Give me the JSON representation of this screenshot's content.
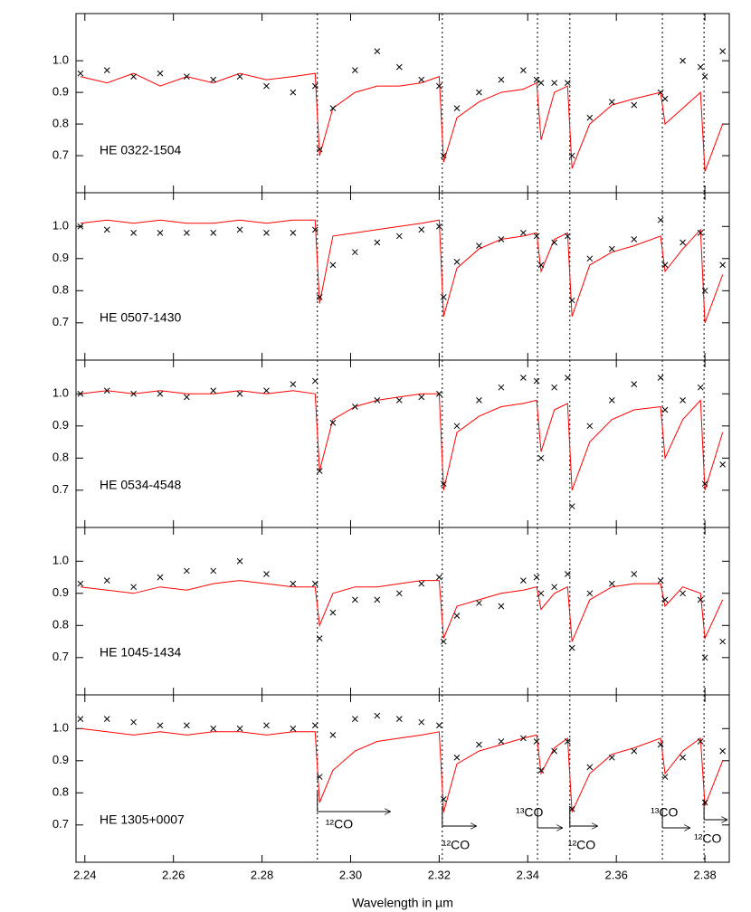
{
  "chart_data": [
    {
      "type": "spectrum",
      "label": "HE 0322-1504",
      "x": [
        2.239,
        2.245,
        2.251,
        2.257,
        2.263,
        2.269,
        2.275,
        2.281,
        2.287,
        2.292,
        2.293,
        2.296,
        2.301,
        2.306,
        2.311,
        2.316,
        2.32,
        2.321,
        2.324,
        2.329,
        2.334,
        2.339,
        2.342,
        2.343,
        2.346,
        2.349,
        2.35,
        2.354,
        2.359,
        2.364,
        2.37,
        2.371,
        2.375,
        2.379,
        2.38,
        2.384
      ],
      "series": [
        {
          "style": "line",
          "color": "#ff0000",
          "values": [
            0.95,
            0.93,
            0.96,
            0.92,
            0.95,
            0.93,
            0.96,
            0.94,
            0.95,
            0.96,
            0.7,
            0.85,
            0.9,
            0.92,
            0.92,
            0.93,
            0.95,
            0.68,
            0.82,
            0.87,
            0.9,
            0.91,
            0.93,
            0.75,
            0.9,
            0.92,
            0.66,
            0.8,
            0.86,
            0.88,
            0.9,
            0.8,
            0.85,
            0.9,
            0.65,
            0.8
          ]
        },
        {
          "style": "cross",
          "color": "#000000",
          "values": [
            0.96,
            0.97,
            0.95,
            0.96,
            0.95,
            0.94,
            0.95,
            0.92,
            0.9,
            0.92,
            0.72,
            0.85,
            0.97,
            1.03,
            0.98,
            0.94,
            0.92,
            0.7,
            0.85,
            0.9,
            0.94,
            0.97,
            0.94,
            0.93,
            0.93,
            0.93,
            0.7,
            0.82,
            0.87,
            0.86,
            0.9,
            0.88,
            1.0,
            0.98,
            0.95,
            1.03
          ]
        }
      ],
      "xlim": [
        2.238,
        2.3855
      ],
      "ylim": [
        0.583,
        1.149
      ],
      "xticks": [
        2.24,
        2.26,
        2.28,
        {
          "value": 2.3,
          "label": "2.30"
        },
        2.32,
        2.34,
        2.36,
        2.38
      ],
      "yticks": [
        0.7,
        0.8,
        0.9,
        {
          "value": 1,
          "label": "1.0"
        }
      ],
      "vlines": [
        2.2925,
        2.3207,
        2.3422,
        2.3495,
        2.3704,
        2.3798
      ]
    },
    {
      "type": "spectrum",
      "label": "HE 0507-1430",
      "x": [
        2.239,
        2.245,
        2.251,
        2.257,
        2.263,
        2.269,
        2.275,
        2.281,
        2.287,
        2.292,
        2.293,
        2.296,
        2.301,
        2.306,
        2.311,
        2.316,
        2.32,
        2.321,
        2.324,
        2.329,
        2.334,
        2.339,
        2.342,
        2.343,
        2.346,
        2.349,
        2.35,
        2.354,
        2.359,
        2.364,
        2.37,
        2.371,
        2.375,
        2.379,
        2.38,
        2.384
      ],
      "series": [
        {
          "style": "line",
          "color": "#ff0000",
          "values": [
            1.01,
            1.02,
            1.01,
            1.02,
            1.01,
            1.01,
            1.02,
            1.01,
            1.02,
            1.02,
            0.76,
            0.97,
            0.98,
            0.99,
            1.0,
            1.01,
            1.02,
            0.72,
            0.87,
            0.93,
            0.96,
            0.97,
            0.98,
            0.86,
            0.96,
            0.98,
            0.72,
            0.88,
            0.92,
            0.94,
            0.97,
            0.86,
            0.93,
            0.99,
            0.7,
            0.85
          ]
        },
        {
          "style": "cross",
          "color": "#000000",
          "values": [
            1.0,
            0.99,
            0.98,
            0.98,
            0.98,
            0.98,
            0.99,
            0.98,
            0.98,
            0.99,
            0.78,
            0.88,
            0.92,
            0.95,
            0.97,
            0.99,
            1.0,
            0.78,
            0.89,
            0.94,
            0.96,
            0.98,
            0.97,
            0.88,
            0.95,
            0.97,
            0.77,
            0.9,
            0.93,
            0.96,
            1.02,
            0.88,
            0.95,
            0.98,
            0.8,
            0.88
          ]
        }
      ],
      "xlim": [
        2.238,
        2.3855
      ],
      "ylim": [
        0.584,
        1.105
      ],
      "xticks": [
        2.24,
        2.26,
        2.28,
        {
          "value": 2.3,
          "label": "2.30"
        },
        2.32,
        2.34,
        2.36,
        2.38
      ],
      "yticks": [
        0.7,
        0.8,
        0.9,
        {
          "value": 1,
          "label": "1.0"
        }
      ],
      "vlines": [
        2.2925,
        2.3207,
        2.3422,
        2.3495,
        2.3704,
        2.3798
      ]
    },
    {
      "type": "spectrum",
      "label": "HE 0534-4548",
      "x": [
        2.239,
        2.245,
        2.251,
        2.257,
        2.263,
        2.269,
        2.275,
        2.281,
        2.287,
        2.292,
        2.293,
        2.296,
        2.301,
        2.306,
        2.311,
        2.316,
        2.32,
        2.321,
        2.324,
        2.329,
        2.334,
        2.339,
        2.342,
        2.343,
        2.346,
        2.349,
        2.35,
        2.354,
        2.359,
        2.364,
        2.37,
        2.371,
        2.375,
        2.379,
        2.38,
        2.384
      ],
      "series": [
        {
          "style": "line",
          "color": "#ff0000",
          "values": [
            1.0,
            1.01,
            1.0,
            1.01,
            1.0,
            1.0,
            1.01,
            1.0,
            1.01,
            1.0,
            0.76,
            0.92,
            0.96,
            0.98,
            0.99,
            1.0,
            1.0,
            0.7,
            0.88,
            0.93,
            0.96,
            0.97,
            0.98,
            0.82,
            0.95,
            0.97,
            0.7,
            0.85,
            0.92,
            0.95,
            0.96,
            0.8,
            0.92,
            0.98,
            0.7,
            0.88
          ]
        },
        {
          "style": "cross",
          "color": "#000000",
          "values": [
            1.0,
            1.01,
            1.0,
            1.0,
            0.99,
            1.01,
            1.0,
            1.01,
            1.03,
            1.04,
            0.76,
            0.91,
            0.96,
            0.98,
            0.98,
            0.99,
            1.0,
            0.72,
            0.9,
            0.98,
            1.02,
            1.05,
            1.04,
            0.8,
            1.02,
            1.05,
            0.65,
            0.9,
            0.98,
            1.03,
            1.05,
            0.95,
            0.98,
            1.02,
            0.72,
            0.78
          ]
        }
      ],
      "xlim": [
        2.238,
        2.3855
      ],
      "ylim": [
        0.584,
        1.105
      ],
      "xticks": [
        2.24,
        2.26,
        2.28,
        {
          "value": 2.3,
          "label": "2.30"
        },
        2.32,
        2.34,
        2.36,
        2.38
      ],
      "yticks": [
        0.7,
        0.8,
        0.9,
        {
          "value": 1,
          "label": "1.0"
        }
      ],
      "vlines": [
        2.2925,
        2.3207,
        2.3422,
        2.3495,
        2.3704,
        2.3798
      ]
    },
    {
      "type": "spectrum",
      "label": "HE 1045-1434",
      "x": [
        2.239,
        2.245,
        2.251,
        2.257,
        2.263,
        2.269,
        2.275,
        2.281,
        2.287,
        2.292,
        2.293,
        2.296,
        2.301,
        2.306,
        2.311,
        2.316,
        2.32,
        2.321,
        2.324,
        2.329,
        2.334,
        2.339,
        2.342,
        2.343,
        2.346,
        2.349,
        2.35,
        2.354,
        2.359,
        2.364,
        2.37,
        2.371,
        2.375,
        2.379,
        2.38,
        2.384
      ],
      "series": [
        {
          "style": "line",
          "color": "#ff0000",
          "values": [
            0.92,
            0.91,
            0.9,
            0.92,
            0.91,
            0.93,
            0.94,
            0.93,
            0.92,
            0.92,
            0.8,
            0.9,
            0.92,
            0.92,
            0.93,
            0.94,
            0.94,
            0.76,
            0.86,
            0.88,
            0.9,
            0.91,
            0.92,
            0.85,
            0.9,
            0.92,
            0.75,
            0.88,
            0.92,
            0.93,
            0.93,
            0.86,
            0.92,
            0.9,
            0.76,
            0.88
          ]
        },
        {
          "style": "cross",
          "color": "#000000",
          "values": [
            0.93,
            0.94,
            0.92,
            0.95,
            0.97,
            0.97,
            1.0,
            0.96,
            0.93,
            0.93,
            0.76,
            0.84,
            0.88,
            0.88,
            0.9,
            0.93,
            0.95,
            0.75,
            0.83,
            0.87,
            0.86,
            0.94,
            0.95,
            0.9,
            0.92,
            0.96,
            0.73,
            0.9,
            0.93,
            0.96,
            0.94,
            0.88,
            0.9,
            0.88,
            0.7,
            0.75
          ]
        }
      ],
      "xlim": [
        2.238,
        2.3855
      ],
      "ylim": [
        0.584,
        1.105
      ],
      "xticks": [
        2.24,
        2.26,
        2.28,
        {
          "value": 2.3,
          "label": "2.30"
        },
        2.32,
        2.34,
        2.36,
        2.38
      ],
      "yticks": [
        0.7,
        0.8,
        0.9,
        {
          "value": 1,
          "label": "1.0"
        }
      ],
      "vlines": [
        2.2925,
        2.3207,
        2.3422,
        2.3495,
        2.3704,
        2.3798
      ]
    },
    {
      "type": "spectrum",
      "label": "HE 1305+0007",
      "xlabel": "Wavelength in µm",
      "x": [
        2.239,
        2.245,
        2.251,
        2.257,
        2.263,
        2.269,
        2.275,
        2.281,
        2.287,
        2.292,
        2.293,
        2.296,
        2.301,
        2.306,
        2.311,
        2.316,
        2.32,
        2.321,
        2.324,
        2.329,
        2.334,
        2.339,
        2.342,
        2.343,
        2.346,
        2.349,
        2.35,
        2.354,
        2.359,
        2.364,
        2.37,
        2.371,
        2.375,
        2.379,
        2.38,
        2.384
      ],
      "series": [
        {
          "style": "line",
          "color": "#ff0000",
          "values": [
            1.0,
            0.99,
            0.98,
            0.99,
            0.98,
            0.99,
            0.99,
            0.98,
            0.99,
            0.99,
            0.77,
            0.87,
            0.93,
            0.96,
            0.97,
            0.98,
            0.99,
            0.74,
            0.89,
            0.93,
            0.95,
            0.97,
            0.98,
            0.86,
            0.94,
            0.97,
            0.74,
            0.86,
            0.92,
            0.94,
            0.97,
            0.86,
            0.93,
            0.97,
            0.76,
            0.9
          ]
        },
        {
          "style": "cross",
          "color": "#000000",
          "values": [
            1.03,
            1.03,
            1.02,
            1.01,
            1.01,
            1.0,
            1.0,
            1.01,
            1.0,
            1.01,
            0.85,
            0.98,
            1.03,
            1.04,
            1.03,
            1.02,
            1.01,
            0.78,
            0.91,
            0.95,
            0.96,
            0.97,
            0.96,
            0.87,
            0.93,
            0.96,
            0.75,
            0.88,
            0.91,
            0.93,
            0.95,
            0.85,
            0.91,
            0.96,
            0.77,
            0.93
          ]
        }
      ],
      "xlim": [
        2.238,
        2.3855
      ],
      "ylim": [
        0.584,
        1.105
      ],
      "xticks": [
        2.24,
        2.26,
        2.28,
        {
          "value": 2.3,
          "label": "2.30"
        },
        2.32,
        2.34,
        2.36,
        2.38
      ],
      "yticks": [
        0.7,
        0.8,
        0.9,
        {
          "value": 1,
          "label": "1.0"
        }
      ],
      "vlines": [
        2.2925,
        2.3207,
        2.3422,
        2.3495,
        2.3704,
        2.3798
      ],
      "annotations": [
        {
          "text": "¹²CO",
          "x": 2.2925
        },
        {
          "text": "¹²CO",
          "x": 2.3207
        },
        {
          "text": "¹³CO",
          "x": 2.3422
        },
        {
          "text": "¹²CO",
          "x": 2.3495
        },
        {
          "text": "¹³CO",
          "x": 2.3704
        },
        {
          "text": "¹²CO",
          "x": 2.3798
        }
      ]
    }
  ]
}
